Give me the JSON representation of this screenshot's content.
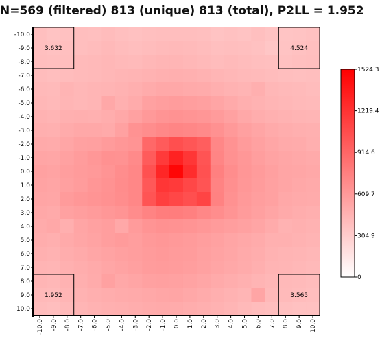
{
  "title": "N=569 (filtered) 813 (unique) 813 (total), P2LL = 1.952",
  "chart_data": {
    "type": "heatmap",
    "x": [
      -10,
      -9,
      -8,
      -7,
      -6,
      -5,
      -4,
      -3,
      -2,
      -1,
      0,
      1,
      2,
      3,
      4,
      5,
      6,
      7,
      8,
      9,
      10
    ],
    "y": [
      -10,
      -9,
      -8,
      -7,
      -6,
      -5,
      -4,
      -3,
      -2,
      -1,
      0,
      1,
      2,
      3,
      4,
      5,
      6,
      7,
      8,
      9,
      10
    ],
    "x_tick_labels": [
      "-10.0",
      "-9.0",
      "-8.0",
      "-7.0",
      "-6.0",
      "-5.0",
      "-4.0",
      "-3.0",
      "-2.0",
      "-1.0",
      "0.0",
      "1.0",
      "2.0",
      "3.0",
      "4.0",
      "5.0",
      "6.0",
      "7.0",
      "8.0",
      "9.0",
      "10.0"
    ],
    "y_tick_labels": [
      "-10.0",
      "-9.0",
      "-8.0",
      "-7.0",
      "-6.0",
      "-5.0",
      "-4.0",
      "-3.0",
      "-2.0",
      "-1.0",
      "0.0",
      "1.0",
      "2.0",
      "3.0",
      "4.0",
      "5.0",
      "6.0",
      "7.0",
      "8.0",
      "9.0",
      "10.0"
    ],
    "values": [
      [
        380,
        360,
        370,
        390,
        380,
        400,
        380,
        370,
        380,
        390,
        390,
        390,
        380,
        360,
        370,
        360,
        380,
        360,
        350,
        360,
        370
      ],
      [
        380,
        370,
        380,
        390,
        400,
        420,
        400,
        390,
        400,
        410,
        420,
        410,
        400,
        380,
        390,
        380,
        370,
        340,
        360,
        370,
        380
      ],
      [
        390,
        380,
        390,
        410,
        420,
        430,
        420,
        410,
        430,
        440,
        440,
        430,
        420,
        400,
        410,
        400,
        390,
        380,
        370,
        380,
        390
      ],
      [
        400,
        390,
        400,
        410,
        420,
        430,
        440,
        450,
        460,
        470,
        480,
        470,
        460,
        440,
        430,
        420,
        410,
        400,
        390,
        380,
        390
      ],
      [
        420,
        410,
        450,
        430,
        440,
        450,
        460,
        480,
        500,
        520,
        520,
        510,
        500,
        480,
        460,
        450,
        480,
        430,
        420,
        410,
        400
      ],
      [
        430,
        420,
        440,
        430,
        440,
        520,
        470,
        500,
        560,
        580,
        590,
        580,
        570,
        540,
        510,
        480,
        460,
        440,
        430,
        420,
        410
      ],
      [
        460,
        450,
        470,
        480,
        470,
        490,
        520,
        560,
        610,
        640,
        650,
        640,
        630,
        600,
        560,
        520,
        490,
        470,
        460,
        450,
        440
      ],
      [
        480,
        470,
        500,
        520,
        520,
        510,
        560,
        650,
        680,
        710,
        730,
        720,
        700,
        660,
        610,
        570,
        540,
        510,
        490,
        480,
        470
      ],
      [
        510,
        500,
        530,
        560,
        570,
        600,
        620,
        640,
        900,
        980,
        1050,
        1010,
        960,
        720,
        650,
        600,
        560,
        530,
        510,
        500,
        480
      ],
      [
        540,
        530,
        560,
        590,
        620,
        660,
        650,
        700,
        980,
        1180,
        1320,
        1200,
        1020,
        730,
        660,
        620,
        580,
        550,
        530,
        520,
        510
      ],
      [
        560,
        550,
        580,
        600,
        610,
        640,
        680,
        720,
        1040,
        1300,
        1490,
        1260,
        1040,
        760,
        680,
        630,
        600,
        570,
        540,
        530,
        520
      ],
      [
        550,
        540,
        570,
        590,
        630,
        650,
        690,
        720,
        1000,
        1200,
        1180,
        1100,
        1020,
        740,
        670,
        620,
        590,
        560,
        540,
        520,
        510
      ],
      [
        540,
        530,
        600,
        620,
        640,
        660,
        680,
        720,
        1020,
        1150,
        1100,
        1050,
        1120,
        750,
        660,
        610,
        580,
        560,
        520,
        510,
        500
      ],
      [
        520,
        510,
        560,
        580,
        600,
        620,
        640,
        690,
        740,
        780,
        780,
        760,
        720,
        680,
        640,
        600,
        570,
        540,
        510,
        490,
        480
      ],
      [
        500,
        520,
        480,
        540,
        560,
        580,
        520,
        600,
        640,
        660,
        650,
        640,
        620,
        600,
        580,
        560,
        540,
        500,
        460,
        470,
        460
      ],
      [
        490,
        480,
        510,
        530,
        550,
        580,
        600,
        580,
        610,
        620,
        610,
        600,
        580,
        560,
        540,
        520,
        500,
        470,
        470,
        460,
        450
      ],
      [
        470,
        460,
        490,
        510,
        530,
        550,
        570,
        580,
        600,
        610,
        600,
        590,
        570,
        550,
        530,
        510,
        490,
        460,
        450,
        440,
        430
      ],
      [
        450,
        440,
        470,
        490,
        510,
        530,
        550,
        570,
        590,
        600,
        590,
        580,
        560,
        540,
        520,
        500,
        480,
        450,
        440,
        430,
        420
      ],
      [
        440,
        430,
        460,
        480,
        500,
        560,
        520,
        540,
        560,
        570,
        560,
        550,
        530,
        510,
        490,
        470,
        450,
        430,
        420,
        410,
        400
      ],
      [
        420,
        410,
        440,
        460,
        480,
        490,
        500,
        510,
        520,
        530,
        540,
        520,
        500,
        480,
        460,
        440,
        540,
        420,
        410,
        400,
        390
      ],
      [
        400,
        390,
        420,
        440,
        460,
        470,
        480,
        490,
        500,
        510,
        500,
        490,
        480,
        460,
        440,
        420,
        400,
        390,
        380,
        370,
        370
      ]
    ],
    "corner_labels": {
      "top_left": "3.632",
      "top_right": "4.524",
      "bottom_left": "1.952",
      "bottom_right": "3.565"
    },
    "colorbar": {
      "min": 0,
      "max": 1524.3,
      "ticks": [
        "1524.3",
        "1219.4",
        "914.6",
        "609.7",
        "304.9",
        "0"
      ]
    },
    "colors": {
      "low": "#ffffff",
      "high": "#ff0000"
    }
  }
}
